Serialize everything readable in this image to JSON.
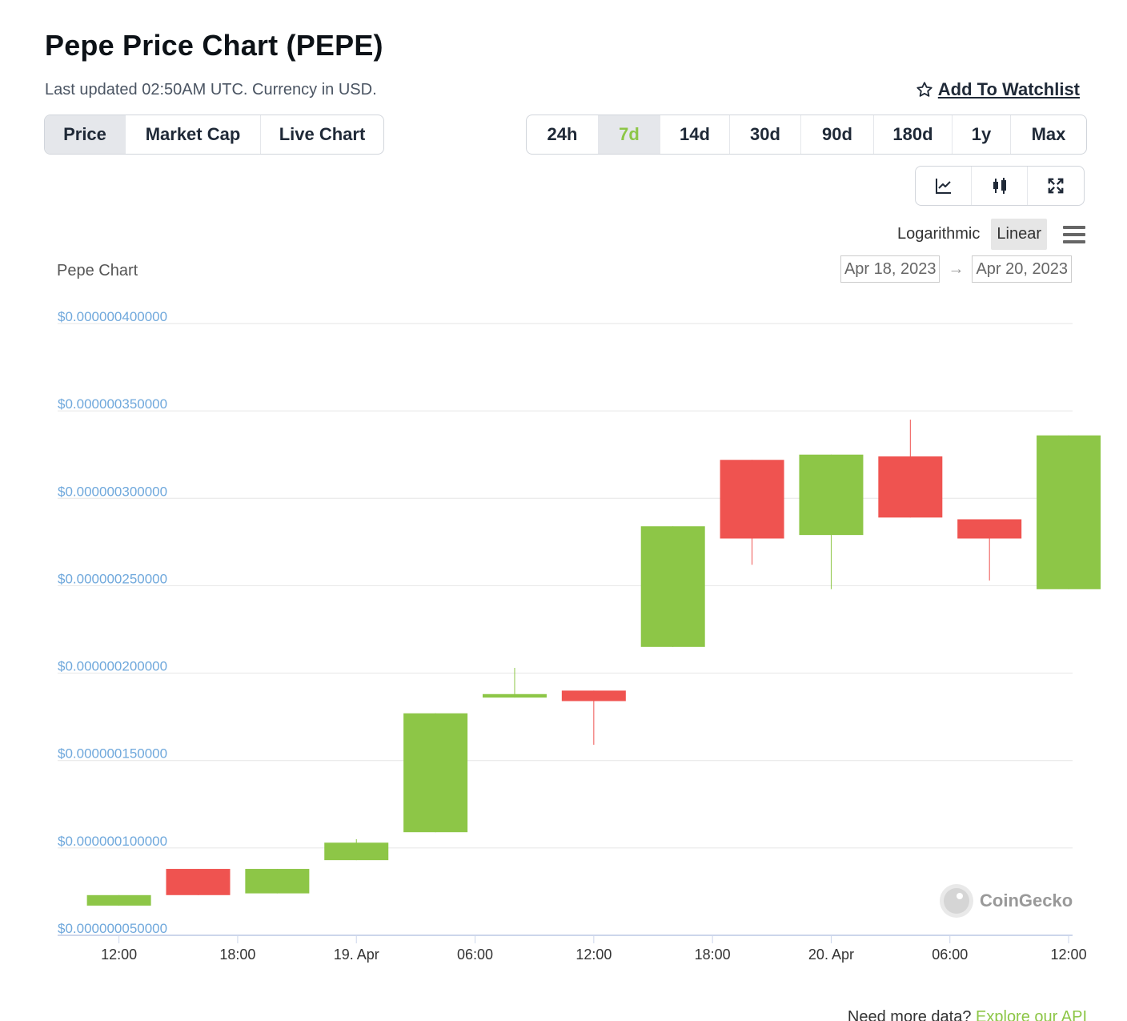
{
  "header": {
    "title": "Pepe Price Chart (PEPE)",
    "subtitle": "Last updated 02:50AM UTC. Currency in USD.",
    "watchlist": "Add To Watchlist"
  },
  "tabs": [
    {
      "label": "Price",
      "active": true
    },
    {
      "label": "Market Cap",
      "active": false
    },
    {
      "label": "Live Chart",
      "active": false
    }
  ],
  "ranges": [
    {
      "label": "24h",
      "active": false
    },
    {
      "label": "7d",
      "active": true
    },
    {
      "label": "14d",
      "active": false
    },
    {
      "label": "30d",
      "active": false
    },
    {
      "label": "90d",
      "active": false
    },
    {
      "label": "180d",
      "active": false
    },
    {
      "label": "1y",
      "active": false
    },
    {
      "label": "Max",
      "active": false
    }
  ],
  "tools": [
    "line-chart-icon",
    "candlestick-icon",
    "fullscreen-icon"
  ],
  "scale": {
    "logarithmic": "Logarithmic",
    "linear": "Linear",
    "active": "linear"
  },
  "chart_label": "Pepe Chart",
  "date_range": {
    "from": "Apr 18, 2023",
    "arrow": "→",
    "to": "Apr 20, 2023"
  },
  "credit": "CoinGecko",
  "footer": {
    "text": "Need more data?",
    "link": "Explore our API"
  },
  "colors": {
    "up": "#8dc647",
    "down": "#ef5350",
    "axis_label": "#6fa8dc",
    "grid": "#e6e6e6"
  },
  "chart_data": {
    "type": "candlestick",
    "title": "Pepe Chart",
    "x_unit": "hours since 2023-04-18 00:00 UTC",
    "ylim": [
      5e-08,
      4e-07
    ],
    "yticks": [
      {
        "value": 5e-08,
        "label": "$0.000000050000"
      },
      {
        "value": 1e-07,
        "label": "$0.000000100000"
      },
      {
        "value": 1.5e-07,
        "label": "$0.000000150000"
      },
      {
        "value": 2e-07,
        "label": "$0.000000200000"
      },
      {
        "value": 2.5e-07,
        "label": "$0.000000250000"
      },
      {
        "value": 3e-07,
        "label": "$0.000000300000"
      },
      {
        "value": 3.5e-07,
        "label": "$0.000000350000"
      },
      {
        "value": 4e-07,
        "label": "$0.000000400000"
      }
    ],
    "xlim": [
      8.9,
      60.2
    ],
    "xticks": [
      {
        "t": 12,
        "label": "12:00"
      },
      {
        "t": 18,
        "label": "18:00"
      },
      {
        "t": 24,
        "label": "19. Apr"
      },
      {
        "t": 30,
        "label": "06:00"
      },
      {
        "t": 36,
        "label": "12:00"
      },
      {
        "t": 42,
        "label": "18:00"
      },
      {
        "t": 48,
        "label": "20. Apr"
      },
      {
        "t": 54,
        "label": "06:00"
      },
      {
        "t": 60,
        "label": "12:00"
      }
    ],
    "candles": [
      {
        "t": 12,
        "open": 6.7e-08,
        "high": 7.3e-08,
        "low": 6.7e-08,
        "close": 7.3e-08
      },
      {
        "t": 16,
        "open": 8.8e-08,
        "high": 8.8e-08,
        "low": 7.3e-08,
        "close": 7.3e-08
      },
      {
        "t": 20,
        "open": 7.4e-08,
        "high": 8.8e-08,
        "low": 7.4e-08,
        "close": 8.8e-08
      },
      {
        "t": 24,
        "open": 9.3e-08,
        "high": 1.05e-07,
        "low": 9.3e-08,
        "close": 1.03e-07
      },
      {
        "t": 28,
        "open": 1.09e-07,
        "high": 1.77e-07,
        "low": 1.09e-07,
        "close": 1.77e-07
      },
      {
        "t": 32,
        "open": 1.86e-07,
        "high": 2.03e-07,
        "low": 1.86e-07,
        "close": 1.88e-07
      },
      {
        "t": 36,
        "open": 1.9e-07,
        "high": 1.9e-07,
        "low": 1.59e-07,
        "close": 1.84e-07
      },
      {
        "t": 40,
        "open": 2.15e-07,
        "high": 2.84e-07,
        "low": 2.15e-07,
        "close": 2.84e-07
      },
      {
        "t": 44,
        "open": 3.22e-07,
        "high": 3.22e-07,
        "low": 2.62e-07,
        "close": 2.77e-07
      },
      {
        "t": 48,
        "open": 2.79e-07,
        "high": 3.25e-07,
        "low": 2.48e-07,
        "close": 3.25e-07
      },
      {
        "t": 52,
        "open": 3.24e-07,
        "high": 3.45e-07,
        "low": 2.89e-07,
        "close": 2.89e-07
      },
      {
        "t": 56,
        "open": 2.88e-07,
        "high": 2.88e-07,
        "low": 2.53e-07,
        "close": 2.77e-07
      },
      {
        "t": 60,
        "open": 2.48e-07,
        "high": 3.36e-07,
        "low": 2.48e-07,
        "close": 3.36e-07
      }
    ]
  }
}
